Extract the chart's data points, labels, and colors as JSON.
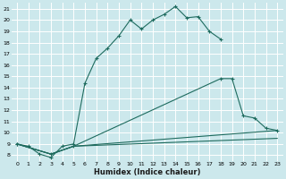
{
  "xlabel": "Humidex (Indice chaleur)",
  "bg_color": "#cce8ec",
  "grid_color": "#ffffff",
  "line_color": "#1e6b5e",
  "xlim": [
    -0.5,
    23.5
  ],
  "ylim": [
    7.5,
    21.5
  ],
  "xticks": [
    0,
    1,
    2,
    3,
    4,
    5,
    6,
    7,
    8,
    9,
    10,
    11,
    12,
    13,
    14,
    15,
    16,
    17,
    18,
    19,
    20,
    21,
    22,
    23
  ],
  "yticks": [
    8,
    9,
    10,
    11,
    12,
    13,
    14,
    15,
    16,
    17,
    18,
    19,
    20,
    21
  ],
  "line1_x": [
    0,
    1,
    2,
    3,
    4,
    5,
    6,
    7,
    8,
    9,
    10,
    11,
    12,
    13,
    14,
    15,
    16,
    17,
    18
  ],
  "line1_y": [
    9.0,
    8.8,
    8.1,
    7.8,
    8.8,
    9.0,
    14.4,
    16.6,
    17.5,
    18.6,
    20.0,
    19.2,
    20.0,
    20.5,
    21.2,
    20.2,
    20.3,
    19.0,
    18.3
  ],
  "line2_x": [
    0,
    3,
    5,
    18,
    19,
    20,
    21,
    22,
    23
  ],
  "line2_y": [
    9.0,
    8.1,
    8.8,
    14.8,
    14.8,
    11.5,
    11.3,
    10.4,
    10.2
  ],
  "line3_x": [
    0,
    3,
    5,
    23
  ],
  "line3_y": [
    9.0,
    8.1,
    8.8,
    10.2
  ],
  "line4_x": [
    0,
    3,
    5,
    23
  ],
  "line4_y": [
    9.0,
    8.1,
    8.8,
    9.5
  ],
  "marker_line1_x": [
    0,
    1,
    2,
    3,
    4,
    5,
    6,
    7,
    8,
    9,
    10,
    11,
    12,
    13,
    14,
    15,
    16,
    17,
    18
  ],
  "marker_line1_y": [
    9.0,
    8.8,
    8.1,
    7.8,
    8.8,
    9.0,
    14.4,
    16.6,
    17.5,
    18.6,
    20.0,
    19.2,
    20.0,
    20.5,
    21.2,
    20.2,
    20.3,
    19.0,
    18.3
  ],
  "marker_line2_x": [
    0,
    3,
    5,
    18,
    19,
    20,
    21,
    22,
    23
  ],
  "marker_line2_y": [
    9.0,
    8.1,
    8.8,
    14.8,
    14.8,
    11.5,
    11.3,
    10.4,
    10.2
  ]
}
